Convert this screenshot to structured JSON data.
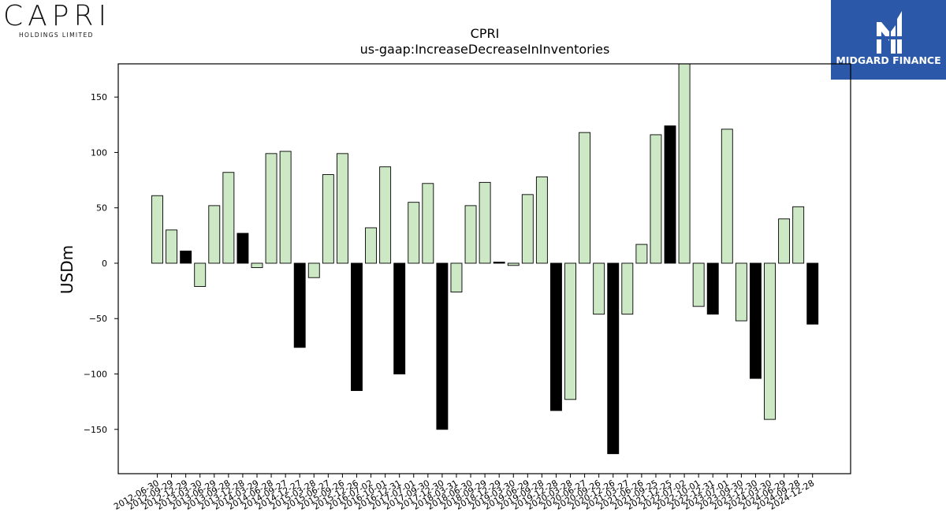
{
  "logos": {
    "left": {
      "brand": "CAPRI",
      "sub": "HOLDINGS LIMITED"
    },
    "right": {
      "name": "MIDGARD FINANCE"
    }
  },
  "colors": {
    "positive_fill": "#cce8c4",
    "highlight_fill": "#000000",
    "bar_stroke": "#000000",
    "brand_blue": "#2b58a8"
  },
  "chart_data": {
    "type": "bar",
    "title": "CPRI",
    "subtitle": "us-gaap:IncreaseDecreaseInInventories",
    "xlabel": "",
    "ylabel": "USDm",
    "ylim": [
      -190,
      180
    ],
    "yticks": [
      -150,
      -100,
      -50,
      0,
      50,
      100,
      150
    ],
    "grid": false,
    "categories": [
      "2012-06-30",
      "2012-09-29",
      "2012-12-29",
      "2013-03-30",
      "2013-06-29",
      "2013-09-28",
      "2013-12-28",
      "2014-03-29",
      "2014-06-28",
      "2014-09-27",
      "2014-12-27",
      "2015-03-28",
      "2015-06-27",
      "2015-09-26",
      "2015-12-26",
      "2016-07-02",
      "2016-10-01",
      "2016-12-31",
      "2017-07-01",
      "2017-09-30",
      "2017-12-30",
      "2018-03-31",
      "2018-06-30",
      "2018-09-29",
      "2018-12-29",
      "2019-03-30",
      "2019-06-29",
      "2019-09-28",
      "2019-12-28",
      "2020-03-28",
      "2020-06-27",
      "2020-09-26",
      "2020-12-26",
      "2021-03-27",
      "2021-06-26",
      "2021-09-25",
      "2021-12-25",
      "2022-07-02",
      "2022-10-01",
      "2022-12-31",
      "2023-07-01",
      "2023-09-30",
      "2023-12-30",
      "2024-03-30",
      "2024-06-29",
      "2024-09-28",
      "2024-12-28"
    ],
    "values": [
      61,
      30,
      11,
      -21,
      52,
      82,
      27,
      -4,
      99,
      101,
      -76,
      -13,
      80,
      99,
      -115,
      32,
      87,
      -100,
      55,
      72,
      -150,
      -26,
      52,
      73,
      1,
      -2,
      62,
      78,
      -133,
      -123,
      118,
      -46,
      -172,
      -46,
      17,
      116,
      124,
      180,
      -39,
      -46,
      121,
      -52,
      -104,
      -141,
      40,
      51,
      -55
    ],
    "highlight": [
      false,
      false,
      true,
      false,
      false,
      false,
      true,
      false,
      false,
      false,
      true,
      false,
      false,
      false,
      true,
      false,
      false,
      true,
      false,
      false,
      true,
      false,
      false,
      false,
      true,
      false,
      false,
      false,
      true,
      false,
      false,
      false,
      true,
      false,
      false,
      false,
      true,
      false,
      false,
      true,
      false,
      false,
      true,
      false,
      false,
      false,
      true
    ]
  }
}
